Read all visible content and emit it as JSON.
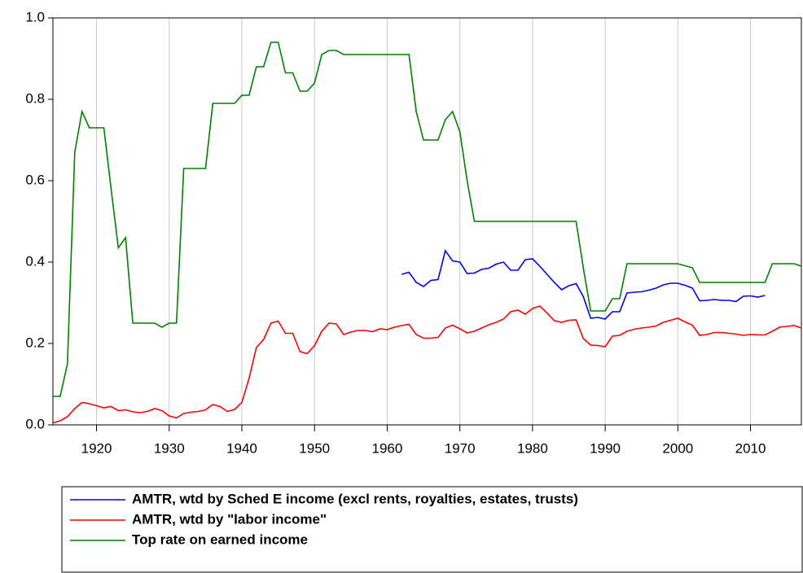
{
  "chart_data": {
    "type": "line",
    "x": [
      1914,
      1915,
      1916,
      1917,
      1918,
      1919,
      1920,
      1921,
      1922,
      1923,
      1924,
      1925,
      1926,
      1927,
      1928,
      1929,
      1930,
      1931,
      1932,
      1933,
      1934,
      1935,
      1936,
      1937,
      1938,
      1939,
      1940,
      1941,
      1942,
      1943,
      1944,
      1945,
      1946,
      1947,
      1948,
      1949,
      1950,
      1951,
      1952,
      1953,
      1954,
      1955,
      1956,
      1957,
      1958,
      1959,
      1960,
      1961,
      1962,
      1963,
      1964,
      1965,
      1966,
      1967,
      1968,
      1969,
      1970,
      1971,
      1972,
      1973,
      1974,
      1975,
      1976,
      1977,
      1978,
      1979,
      1980,
      1981,
      1982,
      1983,
      1984,
      1985,
      1986,
      1987,
      1988,
      1989,
      1990,
      1991,
      1992,
      1993,
      1994,
      1995,
      1996,
      1997,
      1998,
      1999,
      2000,
      2001,
      2002,
      2003,
      2004,
      2005,
      2006,
      2007,
      2008,
      2009,
      2010,
      2011,
      2012,
      2013,
      2014,
      2015,
      2016,
      2017
    ],
    "series": [
      {
        "name": "AMTR, wtd by Sched E income (excl rents, royalties, estates, trusts)",
        "color": "#0000ff",
        "values": [
          null,
          null,
          null,
          null,
          null,
          null,
          null,
          null,
          null,
          null,
          null,
          null,
          null,
          null,
          null,
          null,
          null,
          null,
          null,
          null,
          null,
          null,
          null,
          null,
          null,
          null,
          null,
          null,
          null,
          null,
          null,
          null,
          null,
          null,
          null,
          null,
          null,
          null,
          null,
          null,
          null,
          null,
          null,
          null,
          null,
          null,
          null,
          null,
          0.37,
          0.375,
          0.35,
          0.34,
          0.355,
          0.357,
          0.428,
          0.403,
          0.4,
          0.372,
          0.373,
          0.382,
          0.385,
          0.395,
          0.4,
          0.38,
          0.38,
          0.406,
          0.408,
          0.39,
          0.37,
          0.35,
          0.332,
          0.342,
          0.347,
          0.315,
          0.262,
          0.264,
          0.26,
          0.278,
          0.278,
          0.324,
          0.326,
          0.327,
          0.331,
          0.336,
          0.344,
          0.348,
          0.348,
          0.343,
          0.336,
          0.305,
          0.306,
          0.308,
          0.306,
          0.306,
          0.303,
          0.316,
          0.317,
          0.314,
          0.318,
          null,
          null,
          null,
          null,
          null
        ]
      },
      {
        "name": "AMTR, wtd by \"labor income\"",
        "color": "#ff0000",
        "values": [
          0.005,
          0.01,
          0.02,
          0.04,
          0.055,
          0.052,
          0.047,
          0.042,
          0.045,
          0.035,
          0.037,
          0.032,
          0.03,
          0.033,
          0.04,
          0.035,
          0.022,
          0.017,
          0.028,
          0.031,
          0.033,
          0.037,
          0.05,
          0.045,
          0.033,
          0.038,
          0.055,
          0.115,
          0.19,
          0.21,
          0.25,
          0.255,
          0.225,
          0.225,
          0.18,
          0.175,
          0.195,
          0.23,
          0.25,
          0.248,
          0.222,
          0.228,
          0.232,
          0.232,
          0.229,
          0.236,
          0.234,
          0.24,
          0.244,
          0.247,
          0.222,
          0.213,
          0.213,
          0.215,
          0.238,
          0.245,
          0.236,
          0.226,
          0.23,
          0.238,
          0.246,
          0.252,
          0.26,
          0.278,
          0.282,
          0.272,
          0.286,
          0.292,
          0.275,
          0.256,
          0.252,
          0.257,
          0.258,
          0.212,
          0.196,
          0.195,
          0.192,
          0.218,
          0.22,
          0.23,
          0.235,
          0.238,
          0.24,
          0.243,
          0.252,
          0.257,
          0.262,
          0.253,
          0.245,
          0.22,
          0.222,
          0.227,
          0.227,
          0.225,
          0.223,
          0.22,
          0.222,
          0.221,
          0.221,
          0.23,
          0.24,
          0.242,
          0.244,
          0.238
        ]
      },
      {
        "name": "Top rate on earned income",
        "color": "#008000",
        "values": [
          0.07,
          0.07,
          0.15,
          0.67,
          0.77,
          0.73,
          0.73,
          0.73,
          0.58,
          0.435,
          0.46,
          0.25,
          0.25,
          0.25,
          0.25,
          0.24,
          0.25,
          0.25,
          0.63,
          0.63,
          0.63,
          0.63,
          0.79,
          0.79,
          0.79,
          0.79,
          0.81,
          0.81,
          0.88,
          0.88,
          0.94,
          0.94,
          0.865,
          0.865,
          0.82,
          0.82,
          0.84,
          0.91,
          0.92,
          0.92,
          0.91,
          0.91,
          0.91,
          0.91,
          0.91,
          0.91,
          0.91,
          0.91,
          0.91,
          0.91,
          0.77,
          0.7,
          0.7,
          0.7,
          0.75,
          0.77,
          0.72,
          0.6,
          0.5,
          0.5,
          0.5,
          0.5,
          0.5,
          0.5,
          0.5,
          0.5,
          0.5,
          0.5,
          0.5,
          0.5,
          0.5,
          0.5,
          0.5,
          0.385,
          0.28,
          0.28,
          0.28,
          0.31,
          0.31,
          0.396,
          0.396,
          0.396,
          0.396,
          0.396,
          0.396,
          0.396,
          0.396,
          0.391,
          0.386,
          0.35,
          0.35,
          0.35,
          0.35,
          0.35,
          0.35,
          0.35,
          0.35,
          0.35,
          0.35,
          0.396,
          0.396,
          0.396,
          0.396,
          0.39
        ]
      }
    ],
    "xlim": [
      1914,
      2017
    ],
    "xticks": [
      1920,
      1930,
      1940,
      1950,
      1960,
      1970,
      1980,
      1990,
      2000,
      2010
    ],
    "ylim": [
      0,
      1
    ],
    "yticks": [
      {
        "value": 0,
        "label": "0.0"
      },
      {
        "value": 0.2,
        "label": "0.2"
      },
      {
        "value": 0.4,
        "label": "0.4"
      },
      {
        "value": 0.6,
        "label": "0.6"
      },
      {
        "value": 0.8,
        "label": "0.8"
      },
      {
        "value": 1,
        "label": "1.0"
      }
    ],
    "grid": true,
    "legend": "bottom"
  }
}
